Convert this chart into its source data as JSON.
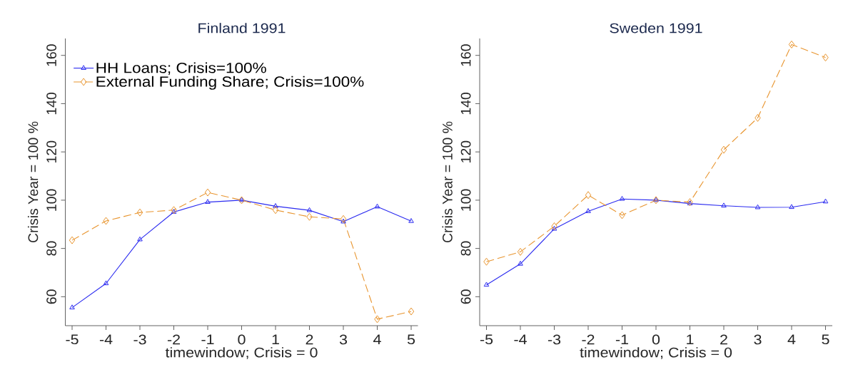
{
  "chart_data": [
    {
      "type": "line",
      "title": "Finland 1991",
      "xlabel": "timewindow; Crisis = 0",
      "ylabel": "Crisis Year = 100 %",
      "x": [
        -5,
        -4,
        -3,
        -2,
        -1,
        0,
        1,
        2,
        3,
        4,
        5
      ],
      "xlim": [
        -5.2,
        5.2
      ],
      "xticks": [
        -5,
        -4,
        -3,
        -2,
        -1,
        0,
        1,
        2,
        3,
        4,
        5
      ],
      "ylim": [
        48,
        167
      ],
      "yticks": [
        60,
        80,
        100,
        120,
        140,
        160
      ],
      "legend": "top left",
      "series": [
        {
          "name": "HH Loans; Crisis=100%",
          "color": "#2b2bf0",
          "marker": "triangle",
          "line_style": "solid",
          "values": [
            55.5,
            65.5,
            83.7,
            95.1,
            99.2,
            100,
            97.5,
            95.8,
            91.1,
            97.3,
            91.3
          ]
        },
        {
          "name": "External Funding Share; Crisis=100%",
          "color": "#e8952f",
          "marker": "diamond",
          "line_style": "dashed",
          "values": [
            83.4,
            91.4,
            94.9,
            95.9,
            103.2,
            100,
            95.9,
            93.1,
            92.2,
            50.7,
            53.9
          ]
        }
      ]
    },
    {
      "type": "line",
      "title": "Sweden 1991",
      "xlabel": "timewindow; Crisis = 0",
      "ylabel": "Crisis Year = 100 %",
      "x": [
        -5,
        -4,
        -3,
        -2,
        -1,
        0,
        1,
        2,
        3,
        4,
        5
      ],
      "xlim": [
        -5.2,
        5.2
      ],
      "xticks": [
        -5,
        -4,
        -3,
        -2,
        -1,
        0,
        1,
        2,
        3,
        4,
        5
      ],
      "ylim": [
        48,
        167
      ],
      "yticks": [
        60,
        80,
        100,
        120,
        140,
        160
      ],
      "series": [
        {
          "color": "#2b2bf0",
          "marker": "triangle",
          "line_style": "solid",
          "values": [
            64.9,
            73.6,
            88.1,
            95.4,
            100.5,
            100,
            98.6,
            97.7,
            97.0,
            97.1,
            99.4
          ]
        },
        {
          "color": "#e8952f",
          "marker": "diamond",
          "line_style": "dashed",
          "values": [
            74.5,
            78.6,
            89.2,
            102.1,
            93.8,
            100,
            99.2,
            120.9,
            134.1,
            164.5,
            159.1
          ]
        }
      ]
    }
  ]
}
